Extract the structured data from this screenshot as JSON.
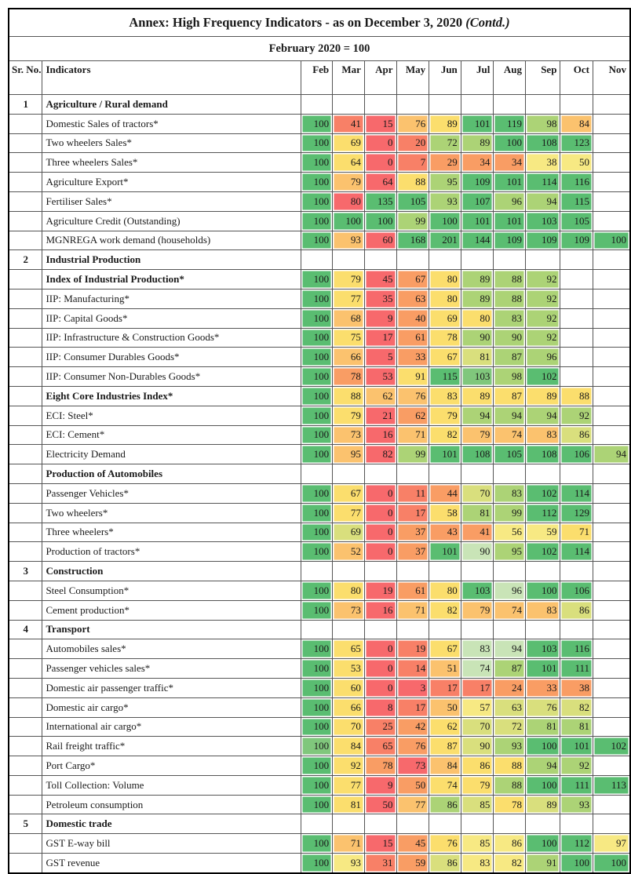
{
  "title": {
    "main": "Annex: High Frequency Indicators - as on December 3, 2020 ",
    "contd": "(Contd.)"
  },
  "subtitle": "February 2020 = 100",
  "columns": {
    "sr": "Sr.\nNo.",
    "indicator": "Indicators",
    "months": [
      "Feb",
      "Mar",
      "Apr",
      "May",
      "Jun",
      "Jul",
      "Aug",
      "Sep",
      "Oct",
      "Nov"
    ]
  },
  "palette": {
    "g": "#5ABD71",
    "g2": "#80C77C",
    "pg": "#C9E4B7",
    "lg": "#ACD376",
    "yg": "#D9DF7D",
    "py": "#F7E983",
    "y": "#FBDE6D",
    "yo": "#FBC26E",
    "o": "#F99D64",
    "ro": "#F88067",
    "r": "#F7696C"
  },
  "rows": [
    {
      "sr": "1",
      "label": "Agriculture / Rural demand",
      "bold": true,
      "cells": null
    },
    {
      "label": "Domestic Sales of tractors*",
      "cells": [
        [
          100,
          "g"
        ],
        [
          41,
          "ro"
        ],
        [
          15,
          "r"
        ],
        [
          76,
          "yo"
        ],
        [
          89,
          "y"
        ],
        [
          101,
          "g"
        ],
        [
          119,
          "g"
        ],
        [
          98,
          "lg"
        ],
        [
          84,
          "yo"
        ],
        null
      ]
    },
    {
      "label": "Two wheelers Sales*",
      "cells": [
        [
          100,
          "g"
        ],
        [
          69,
          "y"
        ],
        [
          0,
          "r"
        ],
        [
          20,
          "ro"
        ],
        [
          72,
          "lg"
        ],
        [
          89,
          "lg"
        ],
        [
          100,
          "g"
        ],
        [
          108,
          "g"
        ],
        [
          123,
          "g"
        ],
        null
      ]
    },
    {
      "label": "Three wheelers Sales*",
      "cells": [
        [
          100,
          "g"
        ],
        [
          64,
          "y"
        ],
        [
          0,
          "r"
        ],
        [
          7,
          "ro"
        ],
        [
          29,
          "o"
        ],
        [
          34,
          "o"
        ],
        [
          34,
          "o"
        ],
        [
          38,
          "py"
        ],
        [
          50,
          "py"
        ],
        null
      ]
    },
    {
      "label": "Agriculture Export*",
      "cells": [
        [
          100,
          "g"
        ],
        [
          79,
          "yo"
        ],
        [
          64,
          "r"
        ],
        [
          88,
          "y"
        ],
        [
          95,
          "lg"
        ],
        [
          109,
          "g"
        ],
        [
          101,
          "g"
        ],
        [
          114,
          "g"
        ],
        [
          116,
          "g"
        ],
        null
      ]
    },
    {
      "label": "Fertiliser Sales*",
      "cells": [
        [
          100,
          "g"
        ],
        [
          80,
          "r"
        ],
        [
          135,
          "g"
        ],
        [
          105,
          "g"
        ],
        [
          93,
          "lg"
        ],
        [
          107,
          "g"
        ],
        [
          96,
          "lg"
        ],
        [
          94,
          "lg"
        ],
        [
          115,
          "g"
        ],
        null
      ]
    },
    {
      "label": "Agriculture Credit (Outstanding)",
      "cells": [
        [
          100,
          "g"
        ],
        [
          100,
          "g"
        ],
        [
          100,
          "g"
        ],
        [
          99,
          "lg"
        ],
        [
          100,
          "g"
        ],
        [
          101,
          "g"
        ],
        [
          101,
          "g"
        ],
        [
          103,
          "g"
        ],
        [
          105,
          "g"
        ],
        null
      ]
    },
    {
      "label": "MGNREGA work demand (households)",
      "cells": [
        [
          100,
          "g"
        ],
        [
          93,
          "yo"
        ],
        [
          60,
          "r"
        ],
        [
          168,
          "g"
        ],
        [
          201,
          "g"
        ],
        [
          144,
          "g"
        ],
        [
          109,
          "g"
        ],
        [
          109,
          "g"
        ],
        [
          109,
          "g"
        ],
        [
          100,
          "g"
        ]
      ]
    },
    {
      "sr": "2",
      "label": "Industrial Production",
      "bold": true,
      "cells": null
    },
    {
      "label": "Index of Industrial Production*",
      "bold": true,
      "cells": [
        [
          100,
          "g"
        ],
        [
          79,
          "y"
        ],
        [
          45,
          "r"
        ],
        [
          67,
          "o"
        ],
        [
          80,
          "y"
        ],
        [
          89,
          "lg"
        ],
        [
          88,
          "lg"
        ],
        [
          92,
          "lg"
        ],
        null,
        null
      ]
    },
    {
      "label": "IIP: Manufacturing*",
      "cells": [
        [
          100,
          "g"
        ],
        [
          77,
          "y"
        ],
        [
          35,
          "r"
        ],
        [
          63,
          "o"
        ],
        [
          80,
          "y"
        ],
        [
          89,
          "lg"
        ],
        [
          88,
          "lg"
        ],
        [
          92,
          "lg"
        ],
        null,
        null
      ]
    },
    {
      "label": "IIP: Capital Goods*",
      "cells": [
        [
          100,
          "g"
        ],
        [
          68,
          "yo"
        ],
        [
          9,
          "r"
        ],
        [
          40,
          "o"
        ],
        [
          69,
          "y"
        ],
        [
          80,
          "y"
        ],
        [
          83,
          "lg"
        ],
        [
          92,
          "lg"
        ],
        null,
        null
      ]
    },
    {
      "label": "IIP: Infrastructure & Construction Goods*",
      "cells": [
        [
          100,
          "g"
        ],
        [
          75,
          "y"
        ],
        [
          17,
          "r"
        ],
        [
          61,
          "o"
        ],
        [
          78,
          "y"
        ],
        [
          90,
          "lg"
        ],
        [
          90,
          "lg"
        ],
        [
          92,
          "lg"
        ],
        null,
        null
      ]
    },
    {
      "label": "IIP: Consumer Durables Goods*",
      "cells": [
        [
          100,
          "g"
        ],
        [
          66,
          "yo"
        ],
        [
          5,
          "r"
        ],
        [
          33,
          "o"
        ],
        [
          67,
          "y"
        ],
        [
          81,
          "yg"
        ],
        [
          87,
          "lg"
        ],
        [
          96,
          "lg"
        ],
        null,
        null
      ]
    },
    {
      "label": "IIP: Consumer Non-Durables Goods*",
      "cells": [
        [
          100,
          "g"
        ],
        [
          78,
          "o"
        ],
        [
          53,
          "r"
        ],
        [
          91,
          "y"
        ],
        [
          115,
          "g"
        ],
        [
          103,
          "g2"
        ],
        [
          98,
          "lg"
        ],
        [
          102,
          "g"
        ],
        null,
        null
      ]
    },
    {
      "label": "Eight Core Industries Index*",
      "bold": true,
      "cells": [
        [
          100,
          "g"
        ],
        [
          88,
          "y"
        ],
        [
          62,
          "yo"
        ],
        [
          76,
          "yo"
        ],
        [
          83,
          "y"
        ],
        [
          89,
          "y"
        ],
        [
          87,
          "y"
        ],
        [
          89,
          "y"
        ],
        [
          88,
          "y"
        ],
        null
      ]
    },
    {
      "label": "ECI: Steel*",
      "cells": [
        [
          100,
          "g"
        ],
        [
          79,
          "y"
        ],
        [
          21,
          "r"
        ],
        [
          62,
          "o"
        ],
        [
          79,
          "y"
        ],
        [
          94,
          "lg"
        ],
        [
          94,
          "lg"
        ],
        [
          94,
          "lg"
        ],
        [
          92,
          "lg"
        ],
        null
      ]
    },
    {
      "label": "ECI: Cement*",
      "cells": [
        [
          100,
          "g"
        ],
        [
          73,
          "yo"
        ],
        [
          16,
          "r"
        ],
        [
          71,
          "yo"
        ],
        [
          82,
          "y"
        ],
        [
          79,
          "yo"
        ],
        [
          74,
          "yo"
        ],
        [
          83,
          "yo"
        ],
        [
          86,
          "yg"
        ],
        null
      ]
    },
    {
      "label": "Electricity Demand",
      "cells": [
        [
          100,
          "g"
        ],
        [
          95,
          "yo"
        ],
        [
          82,
          "r"
        ],
        [
          99,
          "lg"
        ],
        [
          101,
          "g"
        ],
        [
          108,
          "g"
        ],
        [
          105,
          "g"
        ],
        [
          108,
          "g"
        ],
        [
          106,
          "g"
        ],
        [
          94,
          "lg"
        ]
      ]
    },
    {
      "label": "Production of Automobiles",
      "bold": true,
      "cells": null
    },
    {
      "label": "Passenger Vehicles*",
      "cells": [
        [
          100,
          "g"
        ],
        [
          67,
          "y"
        ],
        [
          0,
          "r"
        ],
        [
          11,
          "ro"
        ],
        [
          44,
          "o"
        ],
        [
          70,
          "yg"
        ],
        [
          83,
          "lg"
        ],
        [
          102,
          "g"
        ],
        [
          114,
          "g"
        ],
        null
      ]
    },
    {
      "label": "Two wheelers*",
      "cells": [
        [
          100,
          "g"
        ],
        [
          77,
          "y"
        ],
        [
          0,
          "r"
        ],
        [
          17,
          "ro"
        ],
        [
          58,
          "y"
        ],
        [
          81,
          "lg"
        ],
        [
          99,
          "lg"
        ],
        [
          112,
          "g"
        ],
        [
          129,
          "g"
        ],
        null
      ]
    },
    {
      "label": "Three wheelers*",
      "cells": [
        [
          100,
          "g"
        ],
        [
          69,
          "yg"
        ],
        [
          0,
          "r"
        ],
        [
          37,
          "o"
        ],
        [
          43,
          "o"
        ],
        [
          41,
          "o"
        ],
        [
          56,
          "py"
        ],
        [
          59,
          "py"
        ],
        [
          71,
          "y"
        ],
        null
      ]
    },
    {
      "label": "Production of tractors*",
      "cells": [
        [
          100,
          "g"
        ],
        [
          52,
          "yo"
        ],
        [
          0,
          "r"
        ],
        [
          37,
          "o"
        ],
        [
          101,
          "g"
        ],
        [
          90,
          "pg"
        ],
        [
          95,
          "lg"
        ],
        [
          102,
          "g"
        ],
        [
          114,
          "g"
        ],
        null
      ]
    },
    {
      "sr": "3",
      "label": "Construction",
      "bold": true,
      "cells": null
    },
    {
      "label": "Steel Consumption*",
      "cells": [
        [
          100,
          "g"
        ],
        [
          80,
          "y"
        ],
        [
          19,
          "r"
        ],
        [
          61,
          "o"
        ],
        [
          80,
          "y"
        ],
        [
          103,
          "g"
        ],
        [
          96,
          "pg"
        ],
        [
          100,
          "g"
        ],
        [
          106,
          "g"
        ],
        null
      ]
    },
    {
      "label": "Cement production*",
      "cells": [
        [
          100,
          "g"
        ],
        [
          73,
          "yo"
        ],
        [
          16,
          "r"
        ],
        [
          71,
          "yo"
        ],
        [
          82,
          "y"
        ],
        [
          79,
          "yo"
        ],
        [
          74,
          "yo"
        ],
        [
          83,
          "yo"
        ],
        [
          86,
          "yg"
        ],
        null
      ]
    },
    {
      "sr": "4",
      "label": "Transport",
      "bold": true,
      "cells": null
    },
    {
      "label": "Automobiles sales*",
      "cells": [
        [
          100,
          "g"
        ],
        [
          65,
          "y"
        ],
        [
          0,
          "r"
        ],
        [
          19,
          "ro"
        ],
        [
          67,
          "y"
        ],
        [
          83,
          "pg"
        ],
        [
          94,
          "pg"
        ],
        [
          103,
          "g"
        ],
        [
          116,
          "g"
        ],
        null
      ]
    },
    {
      "label": "Passenger vehicles sales*",
      "cells": [
        [
          100,
          "g"
        ],
        [
          53,
          "y"
        ],
        [
          0,
          "r"
        ],
        [
          14,
          "ro"
        ],
        [
          51,
          "yo"
        ],
        [
          74,
          "pg"
        ],
        [
          87,
          "lg"
        ],
        [
          101,
          "g"
        ],
        [
          111,
          "g"
        ],
        null
      ]
    },
    {
      "label": "Domestic air passenger traffic*",
      "cells": [
        [
          100,
          "g"
        ],
        [
          60,
          "y"
        ],
        [
          0,
          "r"
        ],
        [
          3,
          "r"
        ],
        [
          17,
          "ro"
        ],
        [
          17,
          "ro"
        ],
        [
          24,
          "o"
        ],
        [
          33,
          "o"
        ],
        [
          38,
          "o"
        ],
        null
      ]
    },
    {
      "label": "Domestic air cargo*",
      "cells": [
        [
          100,
          "g"
        ],
        [
          66,
          "y"
        ],
        [
          8,
          "r"
        ],
        [
          17,
          "ro"
        ],
        [
          50,
          "yo"
        ],
        [
          57,
          "py"
        ],
        [
          63,
          "yg"
        ],
        [
          76,
          "yg"
        ],
        [
          82,
          "yg"
        ],
        null
      ]
    },
    {
      "label": "International air cargo*",
      "cells": [
        [
          100,
          "g"
        ],
        [
          70,
          "y"
        ],
        [
          25,
          "ro"
        ],
        [
          42,
          "o"
        ],
        [
          62,
          "y"
        ],
        [
          70,
          "yg"
        ],
        [
          72,
          "yg"
        ],
        [
          81,
          "lg"
        ],
        [
          81,
          "lg"
        ],
        null
      ]
    },
    {
      "label": "Rail freight traffic*",
      "cells": [
        [
          100,
          "g2"
        ],
        [
          84,
          "y"
        ],
        [
          65,
          "ro"
        ],
        [
          76,
          "o"
        ],
        [
          87,
          "y"
        ],
        [
          90,
          "yg"
        ],
        [
          93,
          "lg"
        ],
        [
          100,
          "g"
        ],
        [
          101,
          "g"
        ],
        [
          102,
          "g"
        ]
      ]
    },
    {
      "label": "Port Cargo*",
      "cells": [
        [
          100,
          "g"
        ],
        [
          92,
          "y"
        ],
        [
          78,
          "o"
        ],
        [
          73,
          "r"
        ],
        [
          84,
          "yo"
        ],
        [
          86,
          "y"
        ],
        [
          88,
          "y"
        ],
        [
          94,
          "lg"
        ],
        [
          92,
          "lg"
        ],
        null
      ]
    },
    {
      "label": "Toll Collection: Volume",
      "cells": [
        [
          100,
          "g"
        ],
        [
          77,
          "y"
        ],
        [
          9,
          "r"
        ],
        [
          50,
          "o"
        ],
        [
          74,
          "y"
        ],
        [
          79,
          "y"
        ],
        [
          88,
          "lg"
        ],
        [
          100,
          "g"
        ],
        [
          111,
          "g"
        ],
        [
          113,
          "g"
        ]
      ]
    },
    {
      "label": "Petroleum consumption",
      "cells": [
        [
          100,
          "g"
        ],
        [
          81,
          "y"
        ],
        [
          50,
          "r"
        ],
        [
          77,
          "yo"
        ],
        [
          86,
          "lg"
        ],
        [
          85,
          "yg"
        ],
        [
          78,
          "y"
        ],
        [
          89,
          "yg"
        ],
        [
          93,
          "lg"
        ],
        null
      ]
    },
    {
      "sr": "5",
      "label": "Domestic trade",
      "bold": true,
      "cells": null
    },
    {
      "label": "GST E-way bill",
      "cells": [
        [
          100,
          "g"
        ],
        [
          71,
          "yo"
        ],
        [
          15,
          "r"
        ],
        [
          45,
          "o"
        ],
        [
          76,
          "y"
        ],
        [
          85,
          "py"
        ],
        [
          86,
          "py"
        ],
        [
          100,
          "g"
        ],
        [
          112,
          "g"
        ],
        [
          97,
          "py"
        ]
      ]
    },
    {
      "label": "GST revenue",
      "cells": [
        [
          100,
          "g"
        ],
        [
          93,
          "py"
        ],
        [
          31,
          "ro"
        ],
        [
          59,
          "o"
        ],
        [
          86,
          "yg"
        ],
        [
          83,
          "py"
        ],
        [
          82,
          "py"
        ],
        [
          91,
          "lg"
        ],
        [
          100,
          "g"
        ],
        [
          100,
          "g"
        ]
      ]
    }
  ]
}
